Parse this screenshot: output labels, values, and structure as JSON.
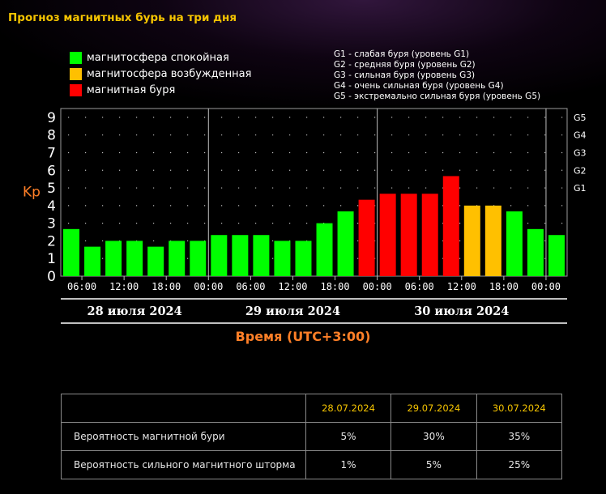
{
  "page_title": "Прогноз магнитных бурь на три дня",
  "legend": [
    {
      "label": "магнитосфера спокойная",
      "color": "#00ff00"
    },
    {
      "label": "магнитосфера возбужденная",
      "color": "#ffc000"
    },
    {
      "label": "магнитная буря",
      "color": "#ff0000"
    }
  ],
  "g_scale": [
    "G1 - слабая буря (уровень G1)",
    "G2 - средняя буря (уровень G2)",
    "G3 - сильная буря (уровень G3)",
    "G4 - очень сильная буря (уровень G4)",
    "G5 - экстремально сильная буря (уровень G5)"
  ],
  "chart_data": {
    "type": "bar",
    "ylabel": "Kp",
    "xlabel": "Время (UTC+3:00)",
    "ylim": [
      0,
      9.5
    ],
    "y_ticks": [
      "0",
      "1",
      "2",
      "3",
      "4",
      "5",
      "6",
      "7",
      "8",
      "9"
    ],
    "right_ticks": [
      {
        "label": "G1",
        "value": 5
      },
      {
        "label": "G2",
        "value": 6
      },
      {
        "label": "G3",
        "value": 7
      },
      {
        "label": "G4",
        "value": 8
      },
      {
        "label": "G5",
        "value": 9
      }
    ],
    "x_ticks": [
      "06:00",
      "12:00",
      "18:00",
      "00:00",
      "06:00",
      "12:00",
      "18:00",
      "00:00",
      "06:00",
      "12:00",
      "18:00",
      "00:00"
    ],
    "days": [
      "28 июля 2024",
      "29 июля 2024",
      "30 июля 2024"
    ],
    "grid": true,
    "values": [
      2.67,
      1.67,
      2.0,
      2.0,
      1.67,
      2.0,
      2.0,
      2.33,
      2.33,
      2.33,
      2.0,
      2.0,
      3.0,
      3.67,
      4.33,
      4.67,
      4.67,
      4.67,
      5.67,
      4.0,
      4.0,
      3.67,
      2.67,
      2.33
    ],
    "bar_colors": [
      "#00ff00",
      "#00ff00",
      "#00ff00",
      "#00ff00",
      "#00ff00",
      "#00ff00",
      "#00ff00",
      "#00ff00",
      "#00ff00",
      "#00ff00",
      "#00ff00",
      "#00ff00",
      "#00ff00",
      "#00ff00",
      "#ff0000",
      "#ff0000",
      "#ff0000",
      "#ff0000",
      "#ff0000",
      "#ffc000",
      "#ffc000",
      "#00ff00",
      "#00ff00",
      "#00ff00"
    ]
  },
  "table": {
    "headers": [
      "28.07.2024",
      "29.07.2024",
      "30.07.2024"
    ],
    "rows": [
      {
        "label": "Вероятность магнитной бури",
        "values": [
          "5%",
          "30%",
          "35%"
        ]
      },
      {
        "label": "Вероятность сильного магнитного шторма",
        "values": [
          "1%",
          "5%",
          "25%"
        ]
      }
    ]
  }
}
